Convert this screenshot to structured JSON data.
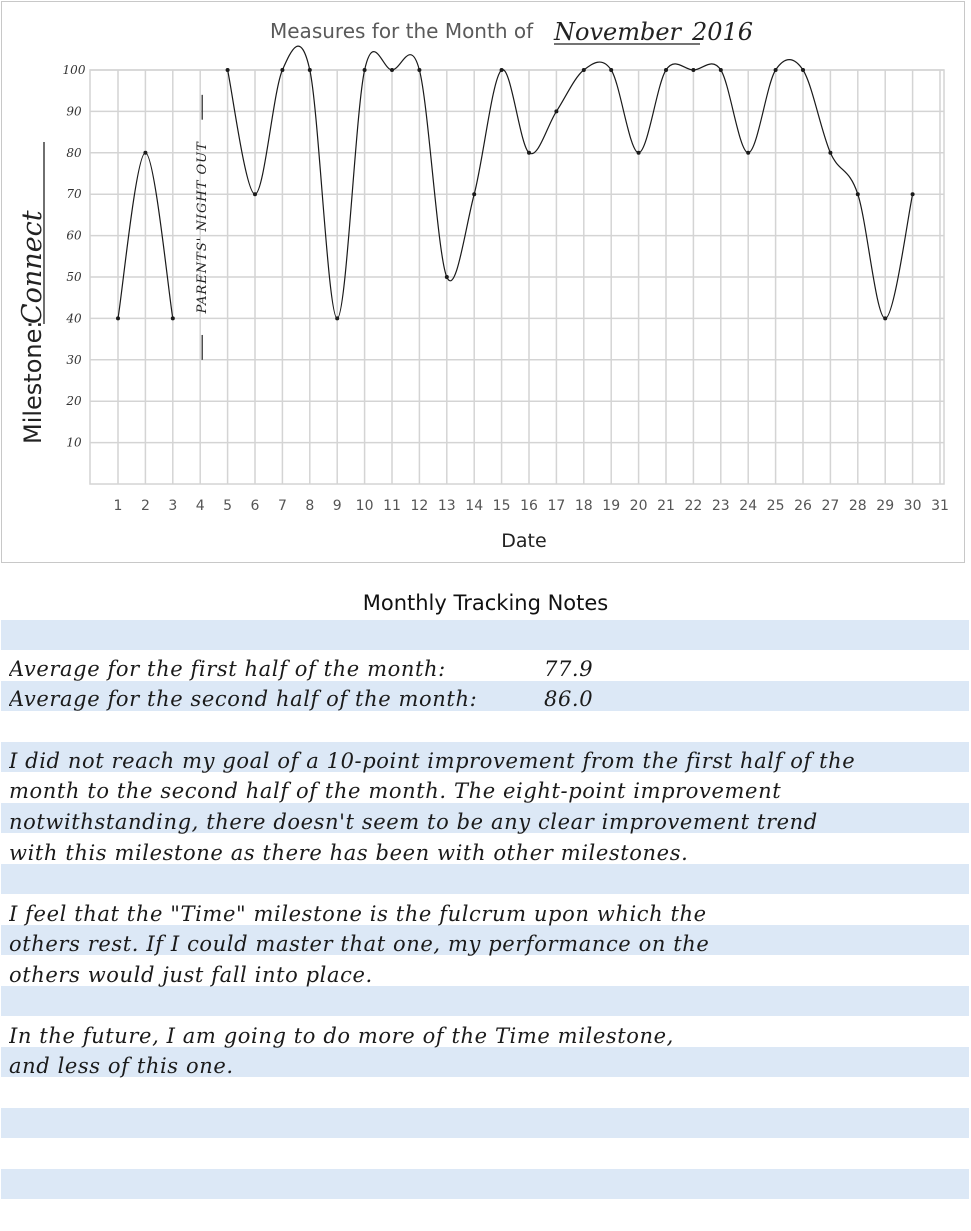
{
  "chart_data": {
    "type": "line",
    "title_prefix": "Measures for the Month of",
    "title_month": "November",
    "title_year": "2016",
    "ylabel_prefix": "Milestone:",
    "ylabel_value": "Connect",
    "xlabel": "Date",
    "categories": [
      1,
      2,
      3,
      4,
      5,
      6,
      7,
      8,
      9,
      10,
      11,
      12,
      13,
      14,
      15,
      16,
      17,
      18,
      19,
      20,
      21,
      22,
      23,
      24,
      25,
      26,
      27,
      28,
      29,
      30,
      31
    ],
    "xlim": [
      1,
      31
    ],
    "ylim": [
      0,
      100
    ],
    "yticks": [
      10,
      20,
      30,
      40,
      50,
      60,
      70,
      80,
      90,
      100
    ],
    "ytick_labels": [
      "10",
      "20",
      "30",
      "40",
      "50",
      "60",
      "70",
      "80",
      "90",
      "100"
    ],
    "grid": true,
    "series": [
      {
        "segments": [
          {
            "x": [
              1,
              2,
              3
            ],
            "y": [
              40,
              80,
              40
            ]
          },
          {
            "x": [
              5,
              6,
              7,
              8,
              9,
              10,
              11,
              12,
              13,
              14,
              15,
              16,
              17,
              18,
              19,
              20,
              21,
              22,
              23,
              24,
              25,
              26,
              27,
              28,
              29,
              30
            ],
            "y": [
              100,
              70,
              100,
              100,
              40,
              100,
              100,
              100,
              50,
              70,
              100,
              80,
              90,
              100,
              100,
              80,
              100,
              100,
              100,
              80,
              100,
              100,
              80,
              70,
              40,
              70
            ]
          }
        ]
      }
    ],
    "annotations": [
      {
        "x": 4,
        "text": "PARENTS' NIGHT OUT"
      }
    ]
  },
  "notes": {
    "title": "Monthly Tracking Notes",
    "avg_first_label": "Average for the first half of the month:",
    "avg_first_value": "77.9",
    "avg_second_label": "Average for the second half of the month:",
    "avg_second_value": "86.0",
    "paragraph1": [
      "I did not reach my goal of a 10-point improvement from the first half of the",
      "month to the second half of the month. The eight-point improvement",
      "notwithstanding, there doesn't seem to be any clear improvement trend",
      "with this milestone as there has been with other milestones."
    ],
    "paragraph2": [
      "I feel that the \"Time\" milestone is the fulcrum upon which the",
      "others rest. If I could master that one, my performance on the",
      "others would just fall into place."
    ],
    "paragraph3": [
      "In the future, I am going to do more of the Time milestone,",
      "and less of this one."
    ]
  }
}
